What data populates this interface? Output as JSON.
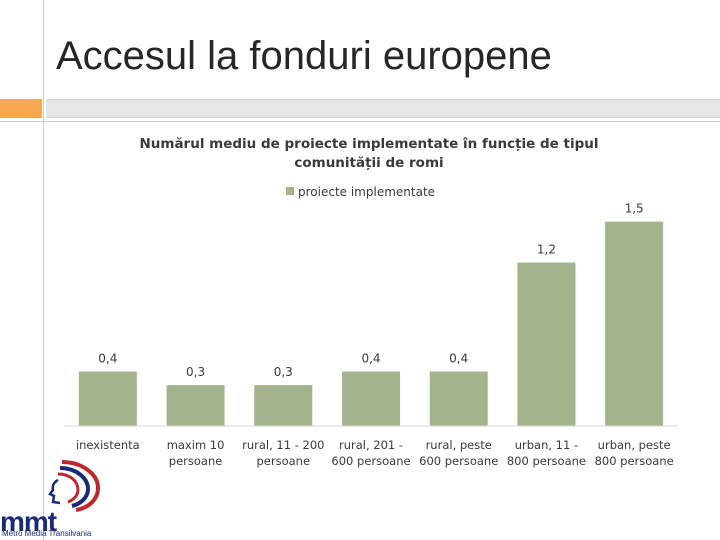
{
  "slide": {
    "title": "Accesul la fonduri europene"
  },
  "logo": {
    "mark": "mmt",
    "subtitle": "Metro Media Transilvania"
  },
  "colors": {
    "bar": "#a3b48c",
    "accent_orange": "#f5a84d",
    "logo_blue": "#1a2a7a",
    "logo_red": "#c0272d"
  },
  "chart_data": {
    "type": "bar",
    "title_line1": "Numărul mediu de proiecte implementate în funcție de tipul",
    "title_line2": "comunității de romi",
    "legend": {
      "label": "proiecte implementate",
      "position": "top"
    },
    "categories": [
      [
        "inexistenta"
      ],
      [
        "maxim 10",
        "persoane"
      ],
      [
        "rural, 11 - 200",
        "persoane"
      ],
      [
        "rural, 201 -",
        "600 persoane"
      ],
      [
        "rural, peste",
        "600 persoane"
      ],
      [
        "urban, 11 -",
        "800 persoane"
      ],
      [
        "urban, peste",
        "800 persoane"
      ]
    ],
    "values": [
      0.4,
      0.3,
      0.3,
      0.4,
      0.4,
      1.2,
      1.5
    ],
    "value_labels": [
      "0,4",
      "0,3",
      "0,3",
      "0,4",
      "0,4",
      "1,2",
      "1,5"
    ],
    "ylim": [
      0,
      1.6
    ],
    "grid": false
  }
}
